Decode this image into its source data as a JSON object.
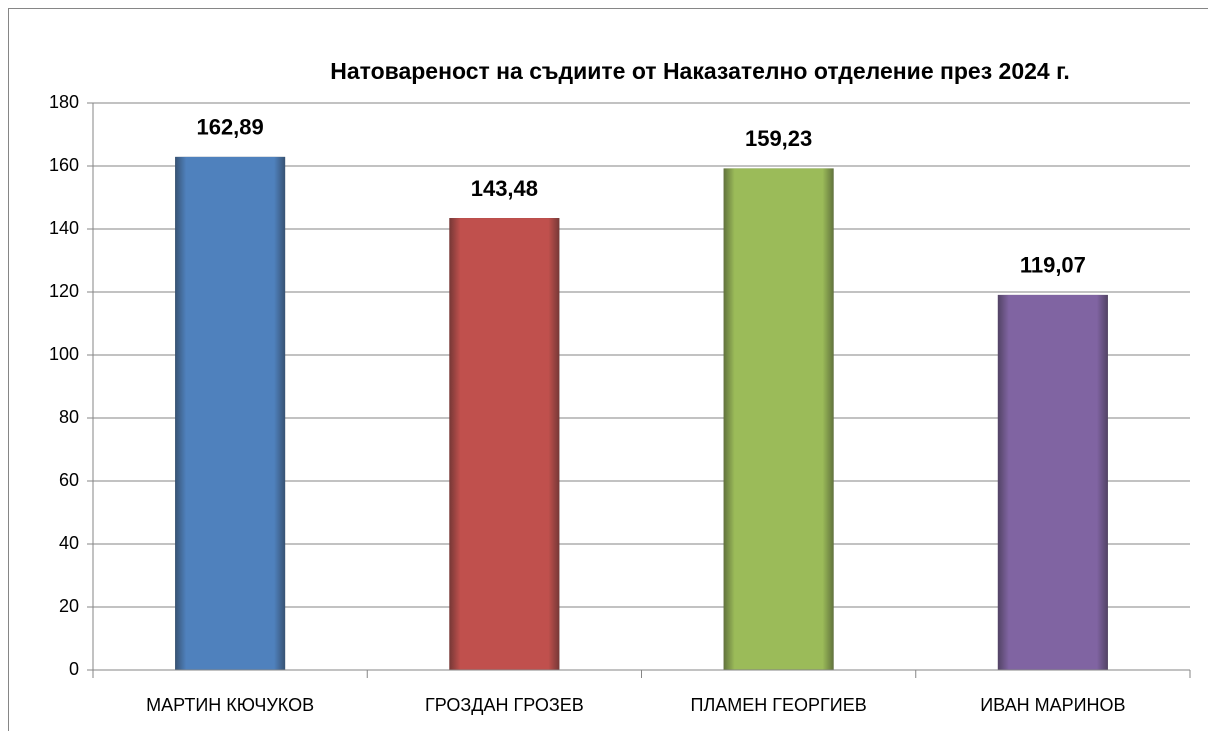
{
  "chart_data": {
    "type": "bar",
    "title": "Натовареност на съдиите от  Наказателно отделение през 2024 г.",
    "categories": [
      "МАРТИН КЮЧУКОВ",
      "ГРОЗДАН ГРОЗЕВ",
      "ПЛАМЕН ГЕОРГИЕВ",
      "ИВАН МАРИНОВ"
    ],
    "values": [
      162.89,
      143.48,
      159.23,
      119.07
    ],
    "value_labels": [
      "162,89",
      "143,48",
      "159,23",
      "119,07"
    ],
    "colors": [
      "#4f81bd",
      "#c0504d",
      "#9bbb59",
      "#8064a2"
    ],
    "ylim": [
      0,
      180
    ],
    "yticks": [
      0,
      20,
      40,
      60,
      80,
      100,
      120,
      140,
      160,
      180
    ],
    "grid": true
  }
}
